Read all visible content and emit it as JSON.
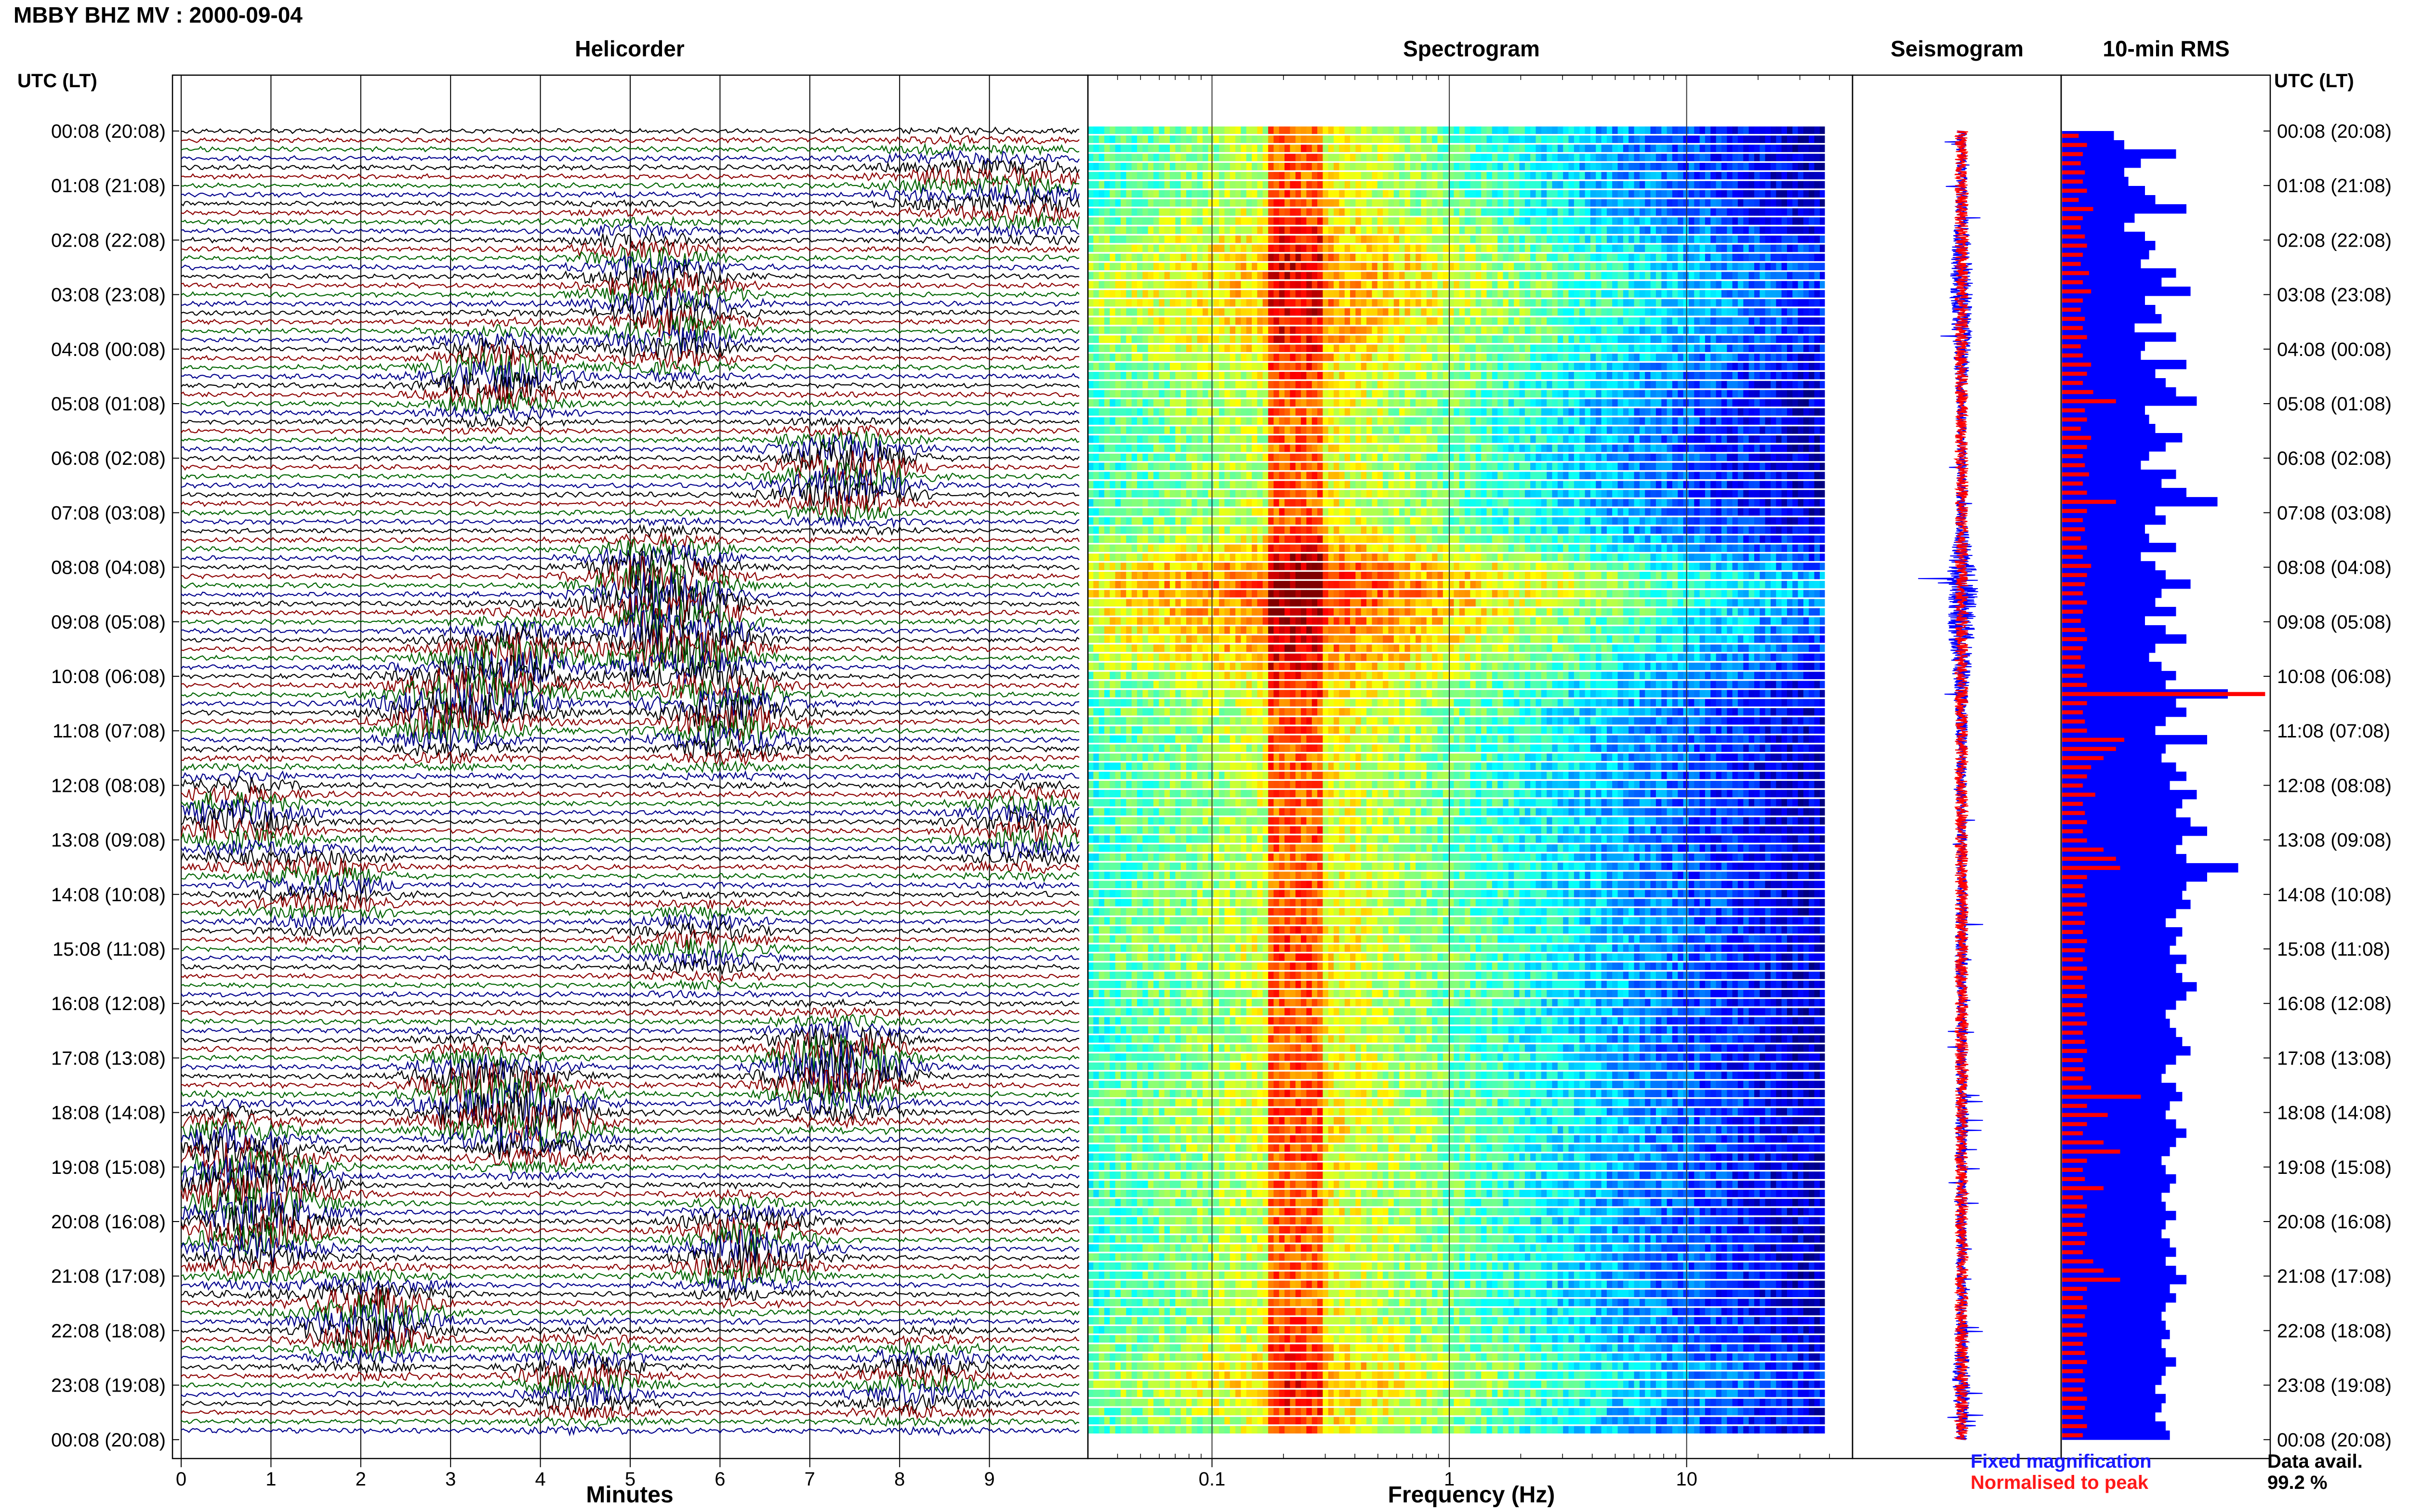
{
  "header": {
    "title": "MBBY BHZ MV : 2000-09-04",
    "utc_lt_label": "UTC (LT)"
  },
  "panels": {
    "helicorder": "Helicorder",
    "spectrogram": "Spectrogram",
    "seismogram": "Seismogram",
    "rms": "10-min RMS"
  },
  "axes": {
    "helicorder_xlabel": "Minutes",
    "spectrogram_xlabel": "Frequency (Hz)"
  },
  "legend": {
    "fixed": "Fixed magnification",
    "normalised": "Normalised to peak"
  },
  "availability": {
    "label": "Data avail.",
    "value": "99.2 %"
  },
  "colors": {
    "trace_cycle": [
      "#000000",
      "#8b0000",
      "#006400",
      "#00008b"
    ],
    "fixed": "#0000ff",
    "normalised": "#ff0000"
  },
  "chart_data": [
    {
      "type": "line",
      "panel": "Helicorder",
      "xlabel": "Minutes",
      "xlim": [
        0,
        10
      ],
      "xticks": [
        "0",
        "1",
        "2",
        "3",
        "4",
        "5",
        "6",
        "7",
        "8",
        "9"
      ],
      "y_tick_labels": [
        "00:08 (20:08)",
        "01:08 (21:08)",
        "02:08 (22:08)",
        "03:08 (23:08)",
        "04:08 (00:08)",
        "05:08 (01:08)",
        "06:08 (02:08)",
        "07:08 (03:08)",
        "08:08 (04:08)",
        "09:08 (05:08)",
        "10:08 (06:08)",
        "11:08 (07:08)",
        "12:08 (08:08)",
        "13:08 (09:08)",
        "14:08 (10:08)",
        "15:08 (11:08)",
        "16:08 (12:08)",
        "17:08 (13:08)",
        "18:08 (14:08)",
        "19:08 (15:08)",
        "20:08 (16:08)",
        "21:08 (17:08)",
        "22:08 (18:08)",
        "23:08 (19:08)",
        "00:08 (20:08)"
      ],
      "traces_per_hour": 6,
      "events": [
        {
          "hour": 0.9,
          "min": 8.5,
          "amp": 0.8
        },
        {
          "hour": 1.2,
          "min": 9.6,
          "amp": 1.0
        },
        {
          "hour": 2.3,
          "min": 5.0,
          "amp": 0.8
        },
        {
          "hour": 3.0,
          "min": 5.5,
          "amp": 1.1
        },
        {
          "hour": 3.8,
          "min": 5.5,
          "amp": 1.2
        },
        {
          "hour": 4.5,
          "min": 3.5,
          "amp": 1.8
        },
        {
          "hour": 6.3,
          "min": 7.4,
          "amp": 2.2
        },
        {
          "hour": 8.3,
          "min": 5.3,
          "amp": 2.5
        },
        {
          "hour": 9.4,
          "min": 5.6,
          "amp": 2.6
        },
        {
          "hour": 9.8,
          "min": 3.7,
          "amp": 2.0
        },
        {
          "hour": 10.6,
          "min": 3.0,
          "amp": 2.2
        },
        {
          "hour": 10.8,
          "min": 6.1,
          "amp": 2.0
        },
        {
          "hour": 12.6,
          "min": 0.6,
          "amp": 1.5
        },
        {
          "hour": 12.8,
          "min": 9.4,
          "amp": 1.3
        },
        {
          "hour": 13.9,
          "min": 1.6,
          "amp": 1.2
        },
        {
          "hour": 14.9,
          "min": 5.8,
          "amp": 1.0
        },
        {
          "hour": 17.2,
          "min": 7.3,
          "amp": 2.8
        },
        {
          "hour": 17.6,
          "min": 3.3,
          "amp": 2.0
        },
        {
          "hour": 18.2,
          "min": 4.0,
          "amp": 1.8
        },
        {
          "hour": 18.8,
          "min": 0.5,
          "amp": 1.8
        },
        {
          "hour": 19.5,
          "min": 1.0,
          "amp": 1.5
        },
        {
          "hour": 20.5,
          "min": 6.3,
          "amp": 2.0
        },
        {
          "hour": 20.3,
          "min": 0.8,
          "amp": 1.5
        },
        {
          "hour": 21.8,
          "min": 2.1,
          "amp": 2.2
        },
        {
          "hour": 22.9,
          "min": 4.5,
          "amp": 1.4
        },
        {
          "hour": 22.9,
          "min": 8.2,
          "amp": 1.2
        }
      ]
    },
    {
      "type": "heatmap",
      "panel": "Spectrogram",
      "xlabel": "Frequency (Hz)",
      "x_scale": "log",
      "xlim": [
        0.03,
        50
      ],
      "xticks": [
        "0.1",
        "1",
        "10"
      ],
      "peak_band_hz": [
        0.17,
        0.3
      ],
      "colormap": "jet"
    },
    {
      "type": "line",
      "panel": "Seismogram",
      "series": [
        {
          "name": "Fixed magnification",
          "color": "#0000ff"
        },
        {
          "name": "Normalised to peak",
          "color": "#ff0000"
        }
      ]
    },
    {
      "type": "bar",
      "panel": "10-min RMS",
      "orientation": "horizontal",
      "fixed_values": [
        0.25,
        0.3,
        0.55,
        0.38,
        0.3,
        0.32,
        0.4,
        0.45,
        0.6,
        0.35,
        0.3,
        0.4,
        0.45,
        0.42,
        0.38,
        0.55,
        0.48,
        0.62,
        0.4,
        0.45,
        0.48,
        0.35,
        0.55,
        0.4,
        0.38,
        0.6,
        0.45,
        0.5,
        0.55,
        0.65,
        0.4,
        0.42,
        0.45,
        0.58,
        0.5,
        0.42,
        0.38,
        0.55,
        0.48,
        0.6,
        0.75,
        0.45,
        0.5,
        0.4,
        0.42,
        0.55,
        0.38,
        0.45,
        0.5,
        0.62,
        0.48,
        0.45,
        0.55,
        0.4,
        0.5,
        0.6,
        0.45,
        0.42,
        0.48,
        0.55,
        0.5,
        0.8,
        0.55,
        0.6,
        0.5,
        0.45,
        0.7,
        0.5,
        0.48,
        0.55,
        0.6,
        0.52,
        0.65,
        0.58,
        0.55,
        0.62,
        0.7,
        0.58,
        0.55,
        0.6,
        0.85,
        0.7,
        0.6,
        0.58,
        0.62,
        0.55,
        0.5,
        0.58,
        0.55,
        0.52,
        0.6,
        0.55,
        0.58,
        0.65,
        0.6,
        0.55,
        0.5,
        0.52,
        0.55,
        0.58,
        0.62,
        0.55,
        0.5,
        0.48,
        0.55,
        0.58,
        0.52,
        0.5,
        0.55,
        0.6,
        0.55,
        0.52,
        0.48,
        0.5,
        0.55,
        0.52,
        0.48,
        0.5,
        0.55,
        0.5,
        0.48,
        0.52,
        0.55,
        0.5,
        0.55,
        0.6,
        0.52,
        0.55,
        0.5,
        0.48,
        0.5,
        0.52,
        0.48,
        0.5,
        0.55,
        0.5,
        0.48,
        0.45,
        0.5,
        0.48,
        0.45,
        0.5,
        0.52
      ],
      "normalised_values": [
        0.08,
        0.12,
        0.1,
        0.09,
        0.11,
        0.1,
        0.12,
        0.08,
        0.15,
        0.1,
        0.09,
        0.11,
        0.12,
        0.1,
        0.09,
        0.13,
        0.1,
        0.14,
        0.1,
        0.09,
        0.11,
        0.1,
        0.12,
        0.09,
        0.1,
        0.14,
        0.12,
        0.1,
        0.15,
        0.26,
        0.11,
        0.12,
        0.09,
        0.14,
        0.12,
        0.1,
        0.11,
        0.13,
        0.1,
        0.12,
        0.26,
        0.12,
        0.1,
        0.11,
        0.09,
        0.12,
        0.1,
        0.14,
        0.12,
        0.11,
        0.1,
        0.12,
        0.1,
        0.09,
        0.11,
        0.12,
        0.1,
        0.09,
        0.11,
        0.1,
        0.12,
        0.98,
        0.12,
        0.1,
        0.11,
        0.12,
        0.3,
        0.26,
        0.2,
        0.14,
        0.12,
        0.1,
        0.16,
        0.1,
        0.11,
        0.12,
        0.1,
        0.12,
        0.2,
        0.26,
        0.28,
        0.12,
        0.1,
        0.11,
        0.12,
        0.1,
        0.11,
        0.1,
        0.12,
        0.11,
        0.1,
        0.12,
        0.1,
        0.11,
        0.12,
        0.1,
        0.11,
        0.12,
        0.1,
        0.11,
        0.12,
        0.1,
        0.11,
        0.1,
        0.14,
        0.38,
        0.12,
        0.22,
        0.12,
        0.1,
        0.2,
        0.28,
        0.12,
        0.1,
        0.11,
        0.2,
        0.1,
        0.12,
        0.11,
        0.1,
        0.12,
        0.11,
        0.1,
        0.15,
        0.2,
        0.28,
        0.12,
        0.1,
        0.12,
        0.11,
        0.1,
        0.12,
        0.1,
        0.11,
        0.12,
        0.1,
        0.11,
        0.1,
        0.12,
        0.11,
        0.1,
        0.12,
        0.1
      ]
    }
  ]
}
